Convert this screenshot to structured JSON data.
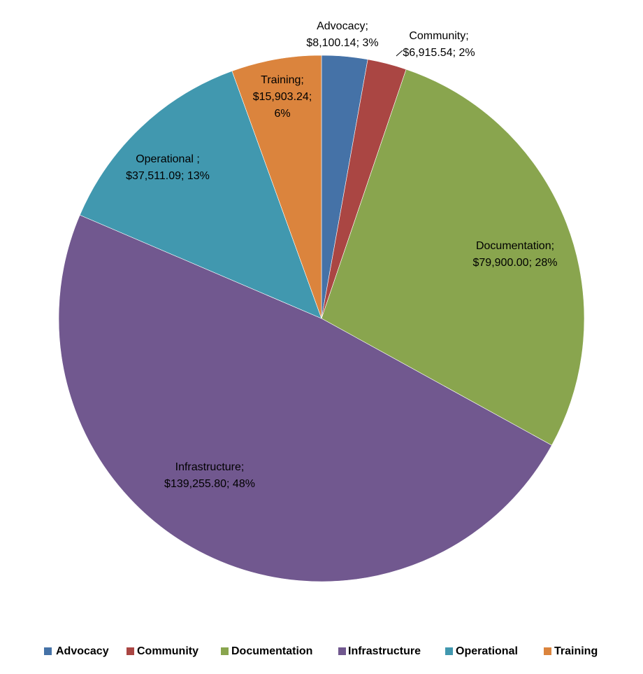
{
  "chart_data": {
    "type": "pie",
    "categories": [
      "Advocacy",
      "Community",
      "Documentation",
      "Infrastructure",
      "Operational",
      "Training"
    ],
    "values": [
      8100.14,
      6915.54,
      79900.0,
      139255.8,
      37511.09,
      15903.24
    ],
    "label_lines": [
      [
        "Advocacy;",
        "$8,100.14; 3%"
      ],
      [
        "Community;",
        "$6,915.54; 2%"
      ],
      [
        "Documentation;",
        "$79,900.00; 28%"
      ],
      [
        "Infrastructure;",
        "$139,255.80; 48%"
      ],
      [
        "Operational ;",
        "$37,511.09; 13%"
      ],
      [
        "Training;",
        "$15,903.24;",
        "6%"
      ]
    ],
    "colors": [
      "#4572a7",
      "#aa4643",
      "#89a54e",
      "#71588f",
      "#4198af",
      "#db843d"
    ],
    "legend": "bottom"
  }
}
